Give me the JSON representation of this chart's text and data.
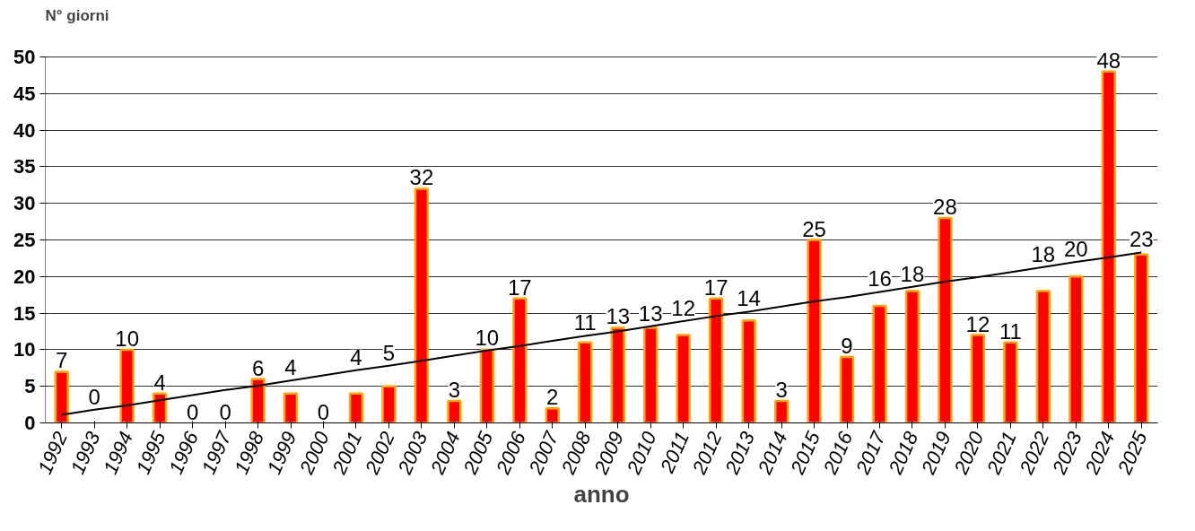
{
  "chart_data": {
    "type": "bar",
    "ylabel": "N° giorni",
    "xlabel": "anno",
    "categories": [
      "1992",
      "1993",
      "1994",
      "1995",
      "1996",
      "1997",
      "1998",
      "1999",
      "2000",
      "2001",
      "2002",
      "2003",
      "2004",
      "2005",
      "2006",
      "2007",
      "2008",
      "2009",
      "2010",
      "2011",
      "2012",
      "2013",
      "2014",
      "2015",
      "2016",
      "2017",
      "2018",
      "2019",
      "2020",
      "2021",
      "2022",
      "2023",
      "2024",
      "2025"
    ],
    "series": [
      {
        "color": "#ff0000",
        "values": [
          7,
          0,
          10,
          4,
          0,
          0,
          6,
          4,
          0,
          4,
          5,
          32,
          3,
          10,
          17,
          2,
          11,
          13,
          13,
          12,
          17,
          14,
          3,
          25,
          9,
          16,
          18,
          28,
          12,
          11,
          18,
          20,
          48,
          23
        ],
        "value_labels": [
          "7",
          "0",
          "10",
          "4",
          "0",
          "0",
          "6",
          "4",
          "0",
          "4",
          "5",
          "32",
          "3",
          "10",
          "17",
          "2",
          "11",
          "13",
          "13",
          "12",
          "17",
          "14",
          "3",
          "25",
          "9",
          "16",
          "18",
          "28",
          "12",
          "11",
          "18",
          "20",
          "48",
          "23"
        ]
      },
      {
        "type": "line",
        "color": "#000000",
        "values": [
          1.1,
          1.8,
          2.4,
          3.1,
          3.8,
          4.5,
          5.1,
          5.8,
          6.5,
          7.2,
          7.8,
          8.5,
          9.2,
          9.9,
          10.5,
          11.2,
          11.9,
          12.5,
          13.2,
          13.9,
          14.6,
          15.2,
          15.9,
          16.6,
          17.2,
          17.9,
          18.6,
          19.3,
          19.9,
          20.6,
          21.3,
          22.0,
          22.6,
          23.3
        ]
      }
    ],
    "ylim": [
      0,
      50
    ],
    "yticks": [
      0,
      5,
      10,
      15,
      20,
      25,
      30,
      35,
      40,
      45,
      50
    ],
    "grid": "y"
  }
}
